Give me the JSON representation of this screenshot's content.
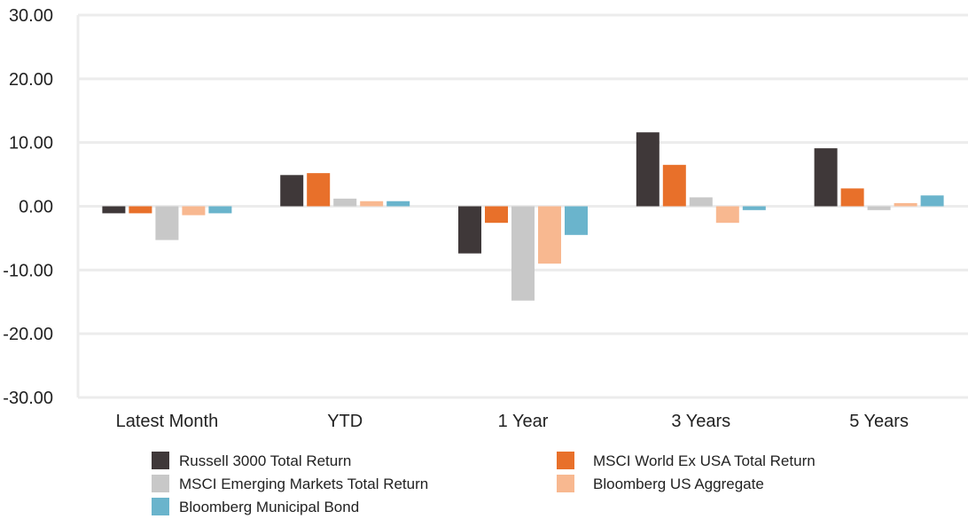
{
  "chart_data": {
    "type": "bar",
    "title": "",
    "xlabel": "",
    "ylabel": "",
    "ylim": [
      -30,
      30
    ],
    "yticks": [
      "30.00",
      "20.00",
      "10.00",
      "0.00",
      "-10.00",
      "-20.00",
      "-30.00"
    ],
    "ytick_values": [
      30,
      20,
      10,
      0,
      -10,
      -20,
      -30
    ],
    "grid": "horizontal",
    "legend_position": "bottom",
    "categories": [
      "Latest Month",
      "YTD",
      "1 Year",
      "3 Years",
      "5 Years"
    ],
    "series": [
      {
        "name": "Russell 3000 Total Return",
        "color": "#3f3839",
        "values": [
          -1.1,
          4.9,
          -7.4,
          11.6,
          9.1
        ]
      },
      {
        "name": "MSCI World Ex USA Total Return",
        "color": "#e8702a",
        "values": [
          -1.1,
          5.2,
          -2.6,
          6.5,
          2.8
        ]
      },
      {
        "name": "MSCI Emerging Markets Total Return",
        "color": "#c8c8c8",
        "values": [
          -5.3,
          1.2,
          -14.8,
          1.4,
          -0.6
        ]
      },
      {
        "name": "Bloomberg US Aggregate",
        "color": "#f8b890",
        "values": [
          -1.4,
          0.8,
          -9.0,
          -2.6,
          0.5
        ]
      },
      {
        "name": "Bloomberg Municipal Bond",
        "color": "#6ab4cc",
        "values": [
          -1.1,
          0.8,
          -4.5,
          -0.6,
          1.7
        ]
      }
    ]
  }
}
